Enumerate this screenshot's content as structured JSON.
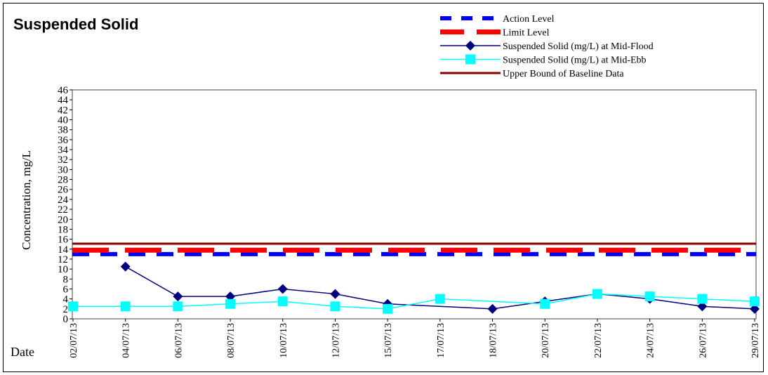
{
  "chart_data": {
    "type": "line",
    "title": "Suspended Solid",
    "xlabel": "Date",
    "ylabel": "Concentration, mg/L",
    "ylim": [
      0,
      46
    ],
    "ytick_step": 2,
    "grid": false,
    "legend_position": "top-right",
    "categories": [
      "02/07/13",
      "04/07/13",
      "06/07/13",
      "08/07/13",
      "10/07/13",
      "12/07/13",
      "15/07/13",
      "17/07/13",
      "18/07/13",
      "20/07/13",
      "22/07/13",
      "24/07/13",
      "26/07/13",
      "29/07/13"
    ],
    "series": [
      {
        "name": "Action Level",
        "kind": "dashed",
        "color": "#0000ff",
        "values": [
          13,
          13,
          13,
          13,
          13,
          13,
          13,
          13,
          13,
          13,
          13,
          13,
          13,
          13
        ]
      },
      {
        "name": "Limit Level",
        "kind": "dashed",
        "color": "#ff0000",
        "values": [
          13.8,
          13.8,
          13.8,
          13.8,
          13.8,
          13.8,
          13.8,
          13.8,
          13.8,
          13.8,
          13.8,
          13.8,
          13.8,
          13.8
        ]
      },
      {
        "name": "Suspended Solid (mg/L) at Mid-Flood",
        "kind": "diamond",
        "color": "#000080",
        "values": [
          null,
          10.5,
          4.5,
          4.5,
          6,
          5,
          3,
          null,
          2,
          3.5,
          5,
          4,
          2.5,
          2
        ]
      },
      {
        "name": "Suspended Solid (mg/L) at Mid-Ebb",
        "kind": "square",
        "color": "#00ffff",
        "values": [
          2.5,
          2.5,
          2.5,
          3,
          3.5,
          2.5,
          2,
          4,
          null,
          3,
          5,
          4.5,
          4,
          3.5
        ]
      },
      {
        "name": "Upper Bound of Baseline Data",
        "kind": "solid",
        "color": "#800000",
        "values": [
          15.1,
          15.1,
          15.1,
          15.1,
          15.1,
          15.1,
          15.1,
          15.1,
          15.1,
          15.1,
          15.1,
          15.1,
          15.1,
          15.1
        ]
      }
    ]
  }
}
